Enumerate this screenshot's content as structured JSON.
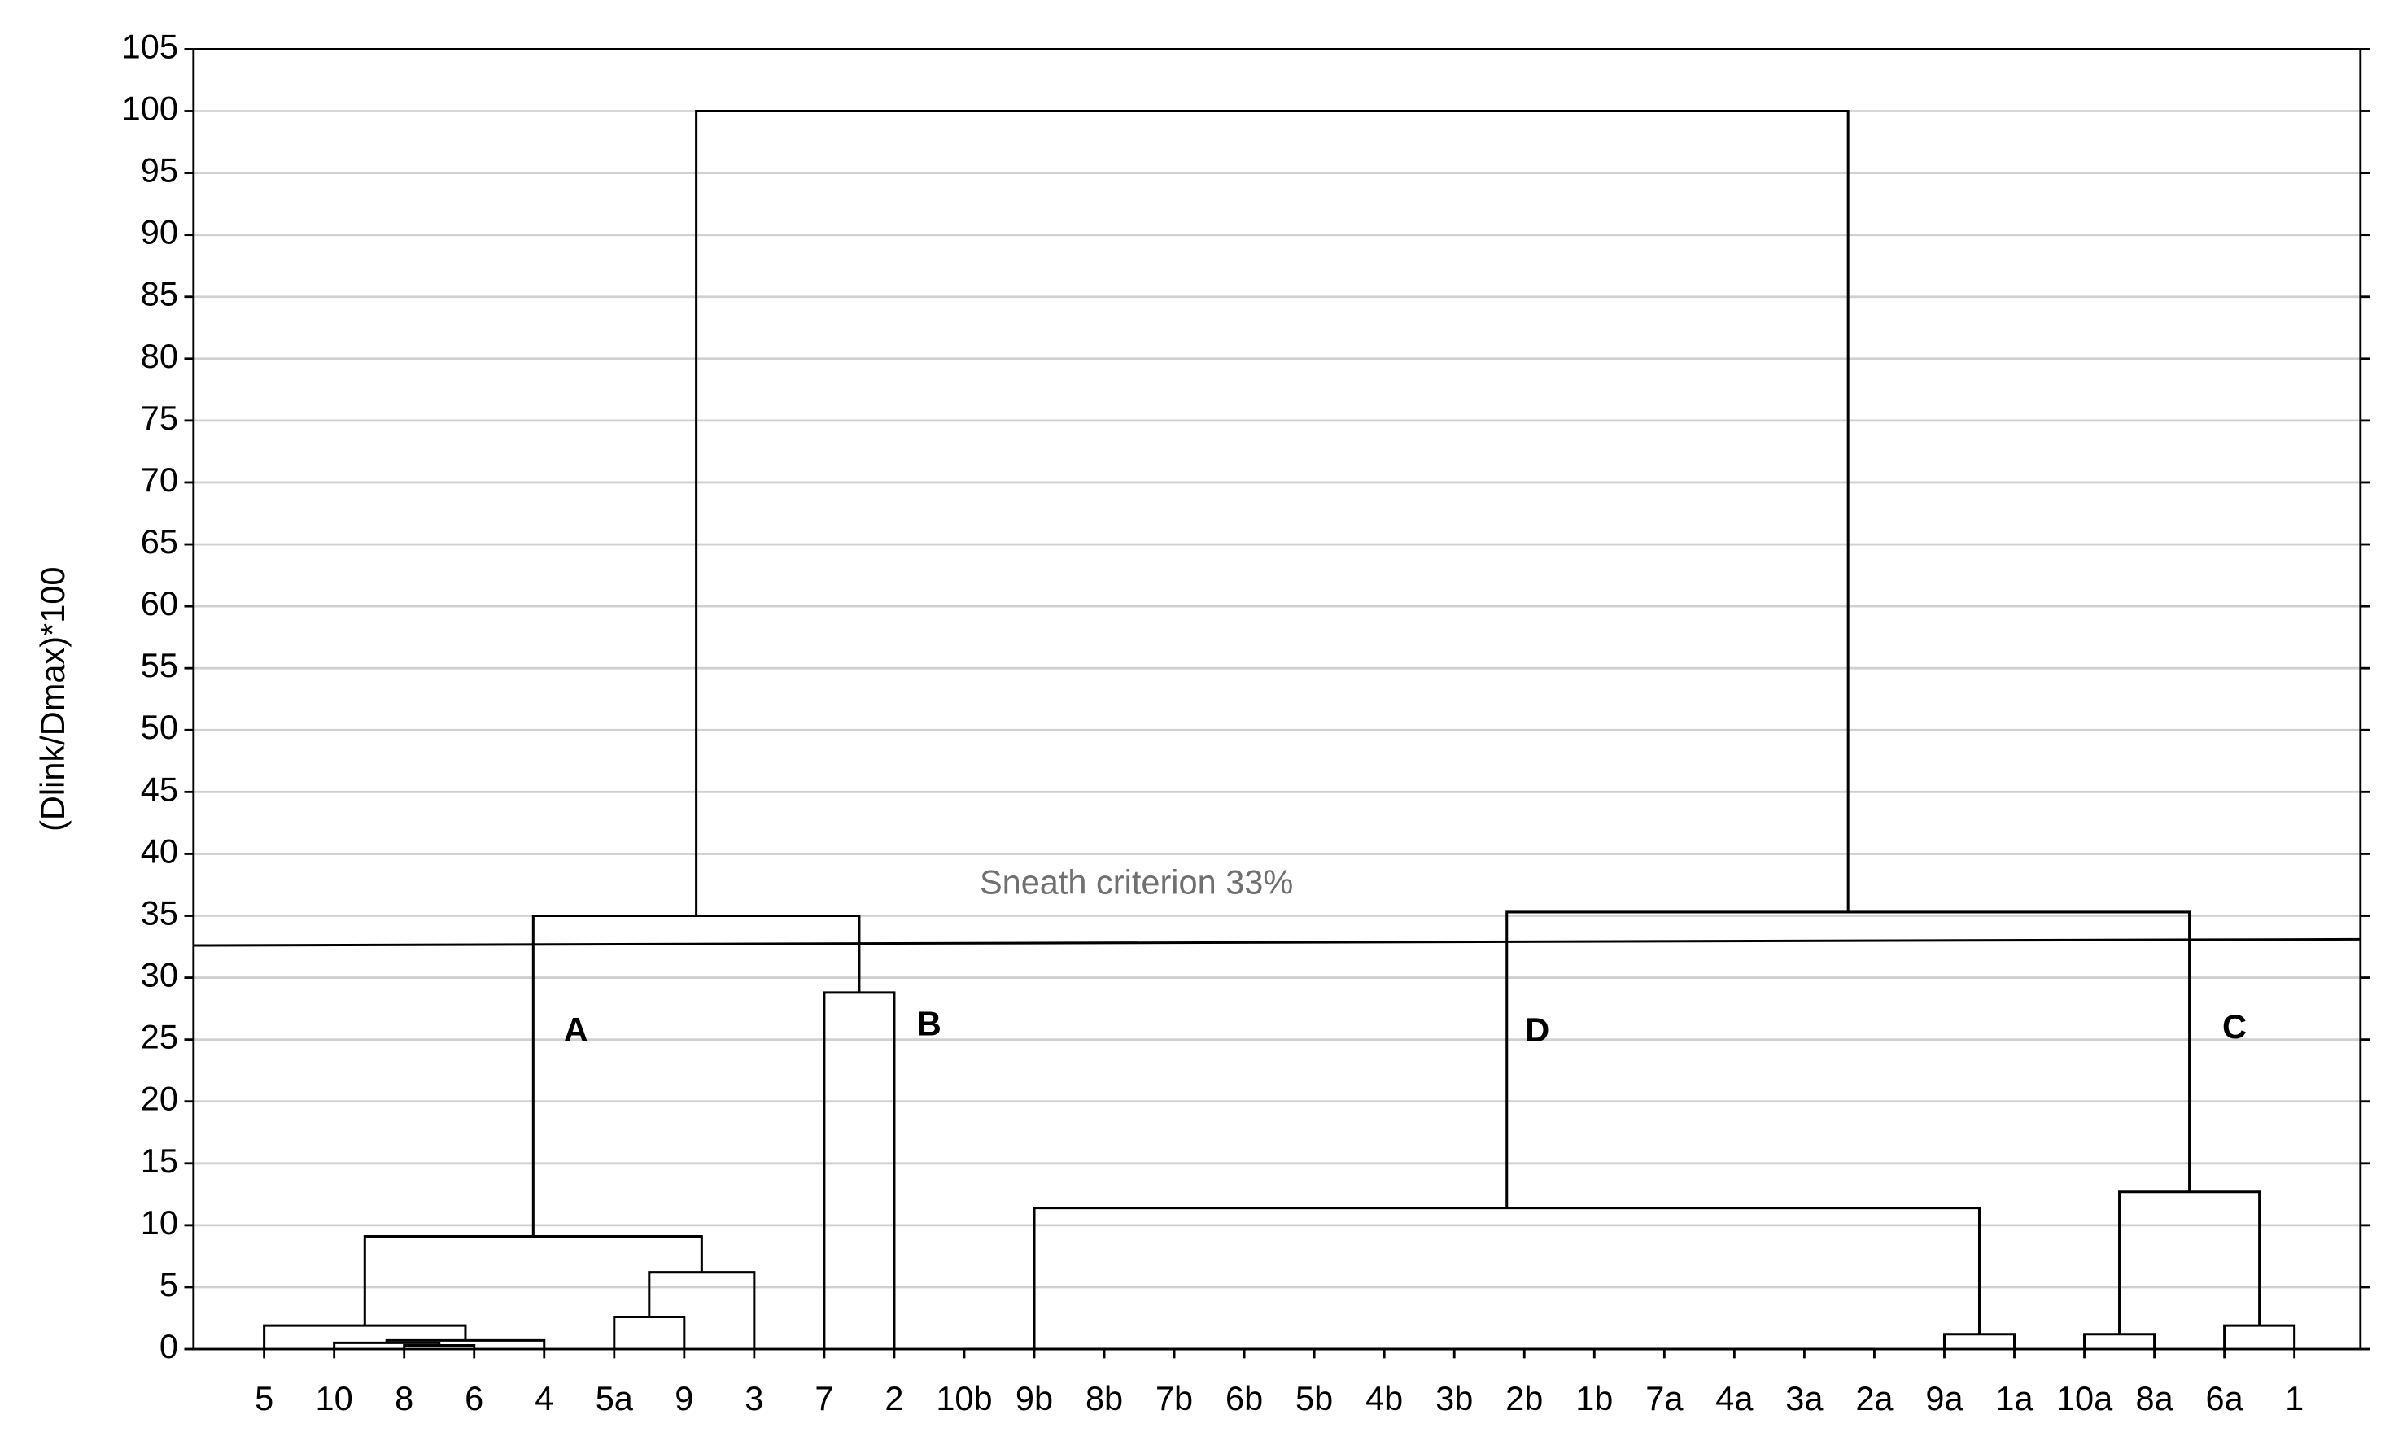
{
  "chart_data": {
    "type": "dendrogram",
    "y_label": "(Dlink/Dmax)*100",
    "categories": [
      "5",
      "10",
      "8",
      "6",
      "4",
      "5a",
      "9",
      "3",
      "7",
      "2",
      "10b",
      "9b",
      "8b",
      "7b",
      "6b",
      "5b",
      "4b",
      "3b",
      "2b",
      "1b",
      "7a",
      "4a",
      "3a",
      "2a",
      "9a",
      "1a",
      "10a",
      "8a",
      "6a",
      "1"
    ],
    "merges": [
      [
        2,
        3,
        0.3
      ],
      [
        1,
        30,
        0.5
      ],
      [
        31,
        4,
        0.7
      ],
      [
        0,
        32,
        1.9
      ],
      [
        5,
        6,
        2.6
      ],
      [
        34,
        7,
        6.2
      ],
      [
        33,
        35,
        9.1
      ],
      [
        8,
        9,
        28.8
      ],
      [
        36,
        37,
        35.0
      ],
      [
        22,
        23,
        0
      ],
      [
        21,
        39,
        0
      ],
      [
        20,
        40,
        0
      ],
      [
        19,
        41,
        0
      ],
      [
        18,
        42,
        0
      ],
      [
        17,
        43,
        0
      ],
      [
        16,
        44,
        0
      ],
      [
        15,
        45,
        0
      ],
      [
        14,
        46,
        0
      ],
      [
        13,
        47,
        0
      ],
      [
        12,
        48,
        0
      ],
      [
        11,
        49,
        0
      ],
      [
        10,
        50,
        0
      ],
      [
        24,
        25,
        1.2
      ],
      [
        51,
        52,
        11.4
      ],
      [
        26,
        27,
        1.2
      ],
      [
        28,
        29,
        1.9
      ],
      [
        54,
        55,
        12.7
      ],
      [
        53,
        56,
        35.3
      ],
      [
        38,
        57,
        100
      ]
    ],
    "reference_line": {
      "label": "Sneath criterion 33%",
      "values": [
        32.6,
        33.1
      ]
    },
    "annotations": [
      "A",
      "B",
      "D",
      "C"
    ],
    "ylim": [
      0,
      105
    ],
    "yticks": [
      0,
      5,
      10,
      15,
      20,
      25,
      30,
      35,
      40,
      45,
      50,
      55,
      60,
      65,
      70,
      75,
      80,
      85,
      90,
      95,
      100,
      105
    ],
    "grid": true,
    "color": "#000000"
  }
}
